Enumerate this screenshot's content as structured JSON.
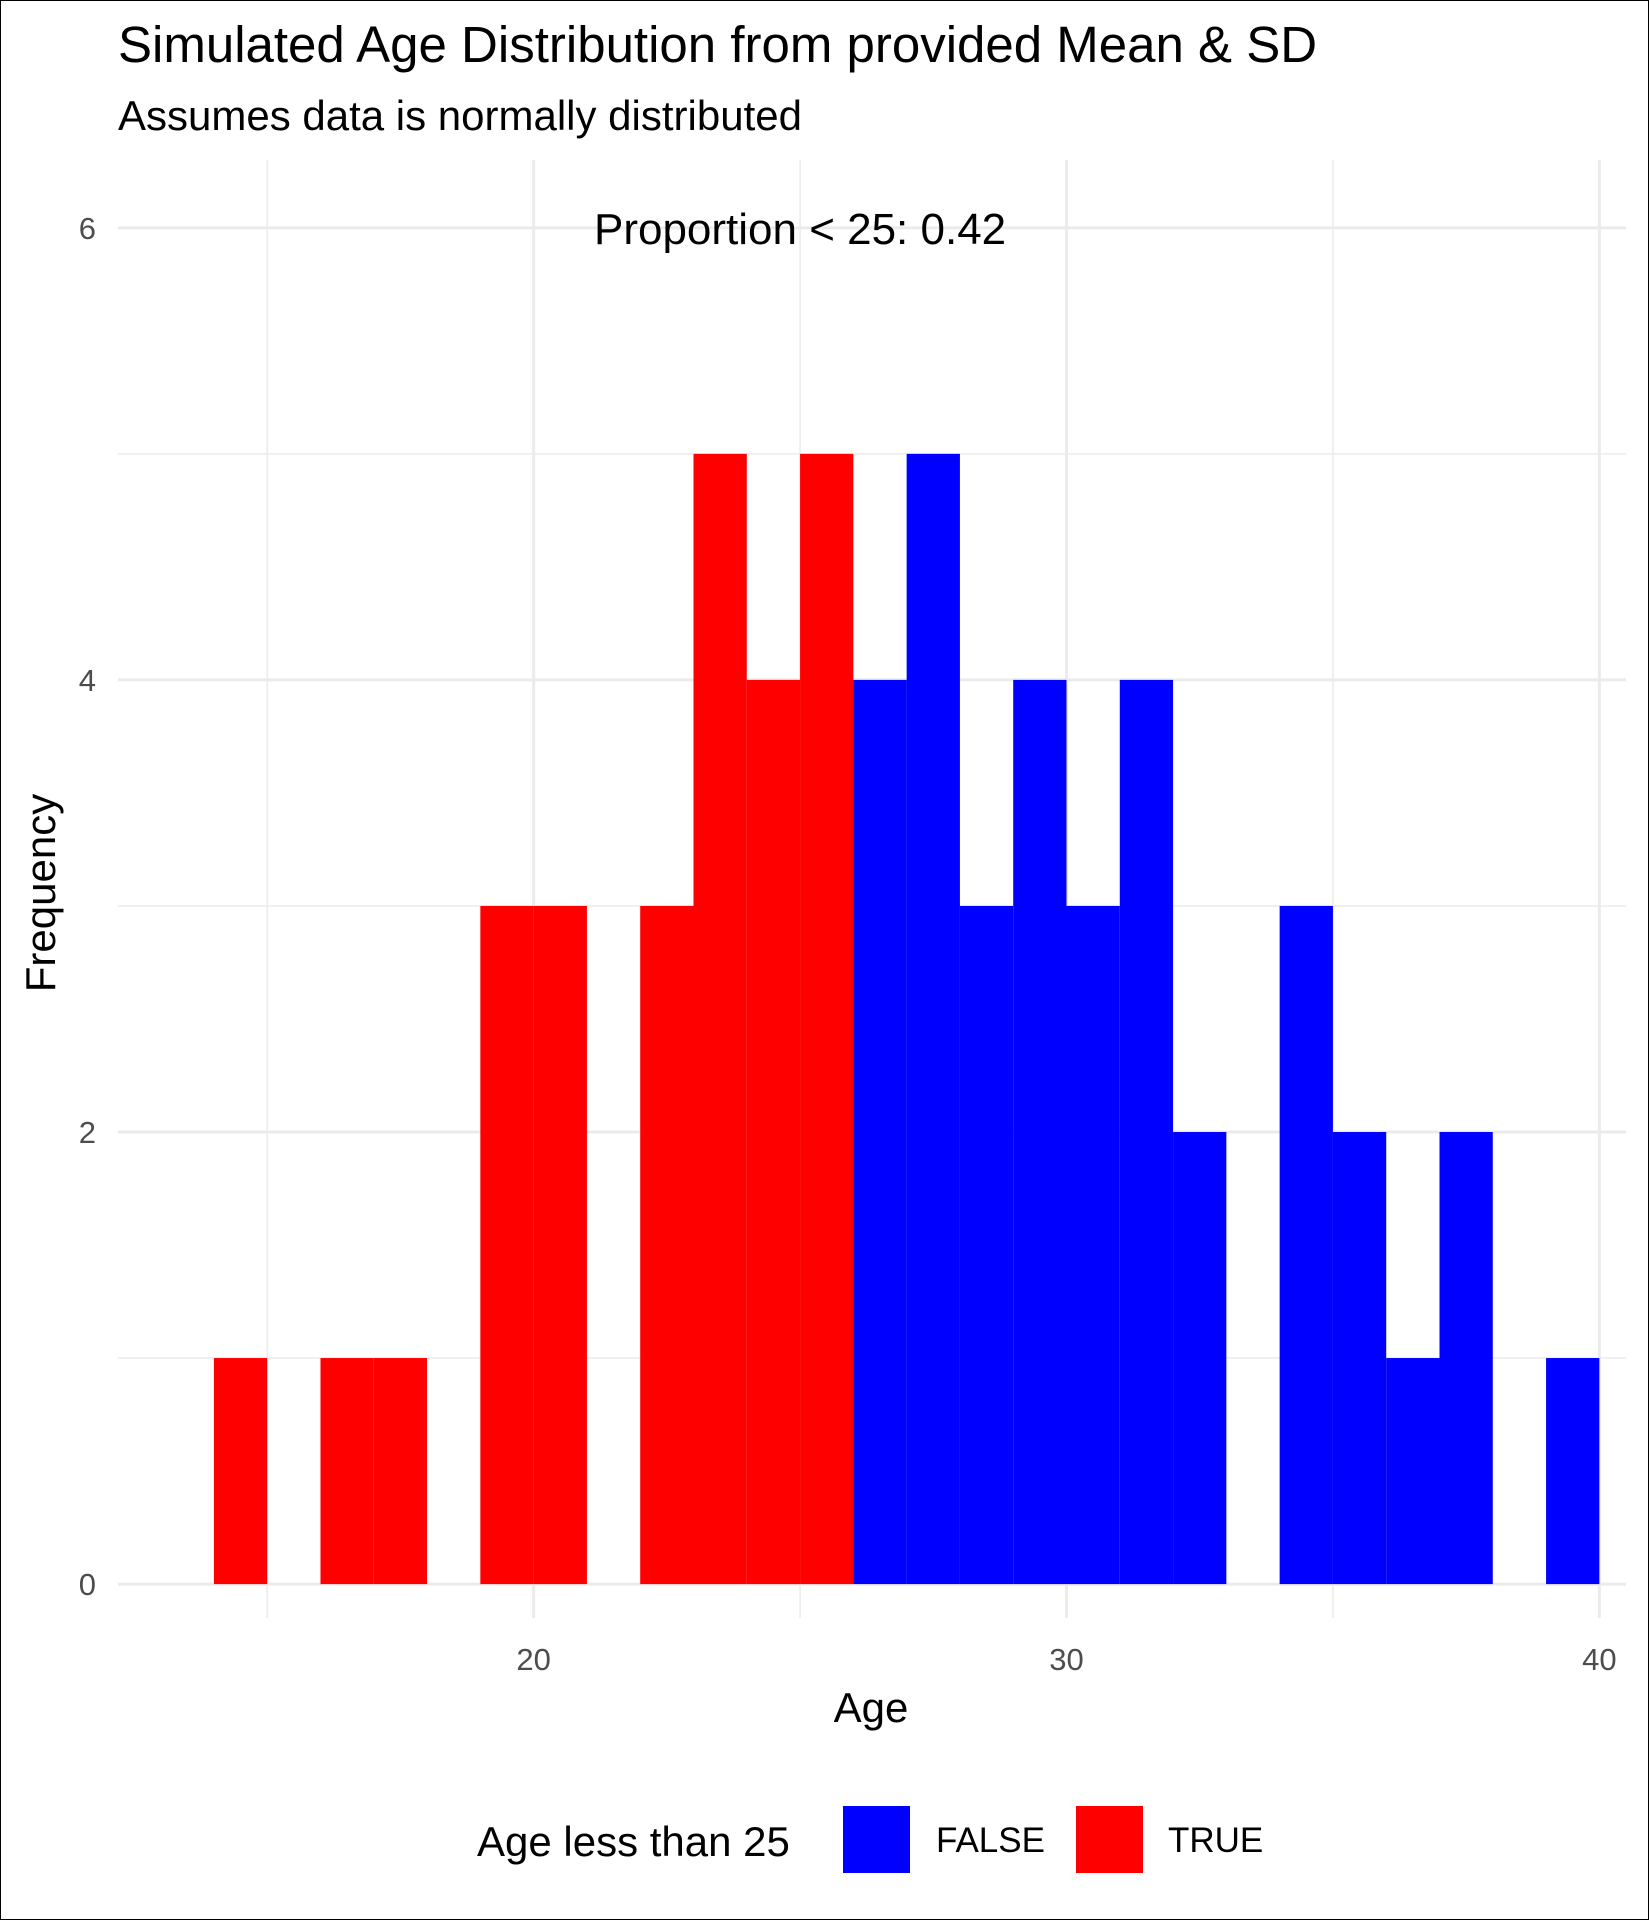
{
  "chart_data": {
    "type": "bar",
    "title": "Simulated Age Distribution from provided Mean & SD",
    "subtitle": "Assumes data is normally distributed",
    "xlabel": "Age",
    "ylabel": "Frequency",
    "xlim": [
      12.2,
      40.5
    ],
    "ylim": [
      -0.15,
      6.3
    ],
    "x_ticks": [
      20,
      30,
      40
    ],
    "y_ticks": [
      0,
      2,
      4,
      6
    ],
    "bin_width": 1,
    "grid": true,
    "annotation": "Proportion < 25: 0.42",
    "annotation_x": 25,
    "annotation_y": 6,
    "legend": {
      "title": "Age less than 25",
      "placement": "bottom",
      "entries": [
        {
          "label": "FALSE",
          "color": "#0000ff"
        },
        {
          "label": "TRUE",
          "color": "#ff0000"
        }
      ]
    },
    "series": [
      {
        "name": "TRUE",
        "color": "#ff0000",
        "bins": [
          {
            "x": 14.5,
            "count": 1
          },
          {
            "x": 16.5,
            "count": 1
          },
          {
            "x": 17.5,
            "count": 1
          },
          {
            "x": 19.5,
            "count": 3
          },
          {
            "x": 20.5,
            "count": 3
          },
          {
            "x": 22.5,
            "count": 3
          },
          {
            "x": 23.5,
            "count": 5
          },
          {
            "x": 24.5,
            "count": 4
          },
          {
            "x": 25.5,
            "count": 5
          }
        ]
      },
      {
        "name": "FALSE",
        "color": "#0000ff",
        "bins": [
          {
            "x": 26.5,
            "count": 4
          },
          {
            "x": 27.5,
            "count": 5
          },
          {
            "x": 28.5,
            "count": 3
          },
          {
            "x": 29.5,
            "count": 4
          },
          {
            "x": 30.5,
            "count": 3
          },
          {
            "x": 31.5,
            "count": 4
          },
          {
            "x": 32.5,
            "count": 2
          },
          {
            "x": 34.5,
            "count": 3
          },
          {
            "x": 35.5,
            "count": 2
          },
          {
            "x": 36.5,
            "count": 1
          },
          {
            "x": 37.5,
            "count": 2
          },
          {
            "x": 39.5,
            "count": 1
          }
        ]
      }
    ]
  }
}
